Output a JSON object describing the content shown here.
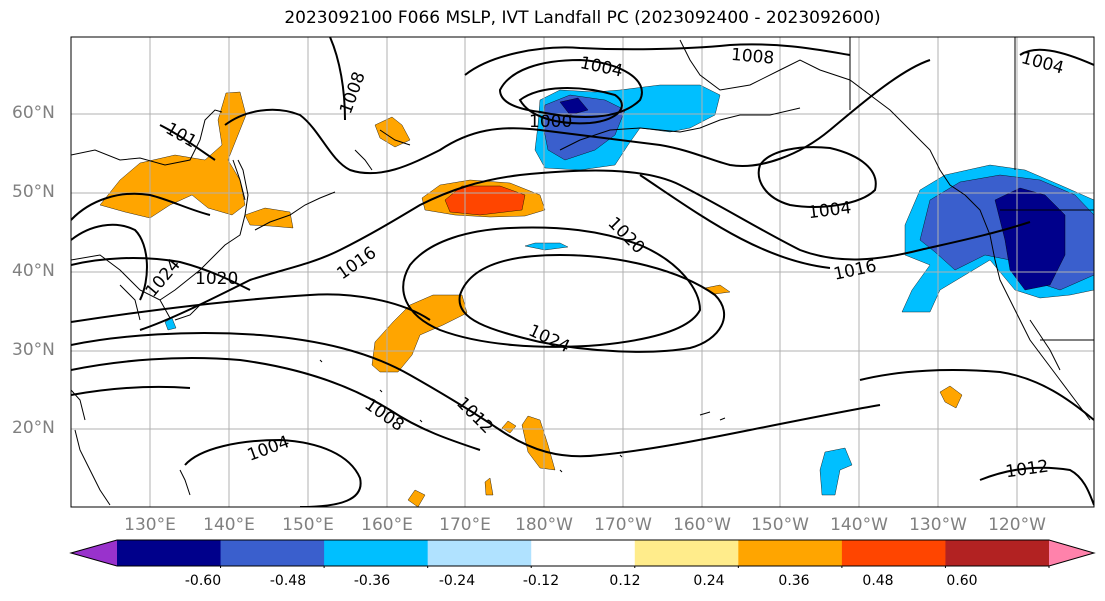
{
  "title": "2023092100 F066 MSLP, IVT Landfall PC (2023092400 - 2023092600)",
  "latitude_labels": [
    "60°N",
    "50°N",
    "40°N",
    "30°N",
    "20°N"
  ],
  "longitude_labels": [
    "130°E",
    "140°E",
    "150°E",
    "160°E",
    "170°E",
    "180°W",
    "170°W",
    "160°W",
    "150°W",
    "140°W",
    "130°W",
    "120°W"
  ],
  "isobar_labels": [
    {
      "id": "1004-aleutian-north",
      "text": "1004"
    },
    {
      "id": "1008-top",
      "text": "1008"
    },
    {
      "id": "1000-aleutian",
      "text": "1000"
    },
    {
      "id": "1004-canada",
      "text": "1004"
    },
    {
      "id": "1008-okhotsk",
      "text": "1008"
    },
    {
      "id": "1012-okhotsk",
      "text": "1012"
    },
    {
      "id": "1016-kuril",
      "text": "1016"
    },
    {
      "id": "1024-japan",
      "text": "1024"
    },
    {
      "id": "1020-japan",
      "text": "1020"
    },
    {
      "id": "1020-central",
      "text": "1020"
    },
    {
      "id": "1004-gulf-alaska",
      "text": "1004"
    },
    {
      "id": "1016-east",
      "text": "1016"
    },
    {
      "id": "1024-high",
      "text": "1024"
    },
    {
      "id": "1008-subtropic",
      "text": "1008"
    },
    {
      "id": "1012-subtropic",
      "text": "1012"
    },
    {
      "id": "1004-tropic",
      "text": "1004"
    },
    {
      "id": "1012-mexico",
      "text": "1012"
    },
    {
      "id": "1012-partial",
      "text": "101"
    }
  ],
  "colorbar": {
    "colors": [
      "#9932cc",
      "#00008b",
      "#3a5fcd",
      "#00bfff",
      "#b0e2ff",
      "#ffffff",
      "#ffec8b",
      "#ffa500",
      "#ff4500",
      "#b22222",
      "#ff82ab"
    ],
    "tick_labels": [
      "-0.60",
      "-0.48",
      "-0.36",
      "-0.24",
      "-0.12",
      "0.12",
      "0.24",
      "0.36",
      "0.48",
      "0.60"
    ]
  }
}
